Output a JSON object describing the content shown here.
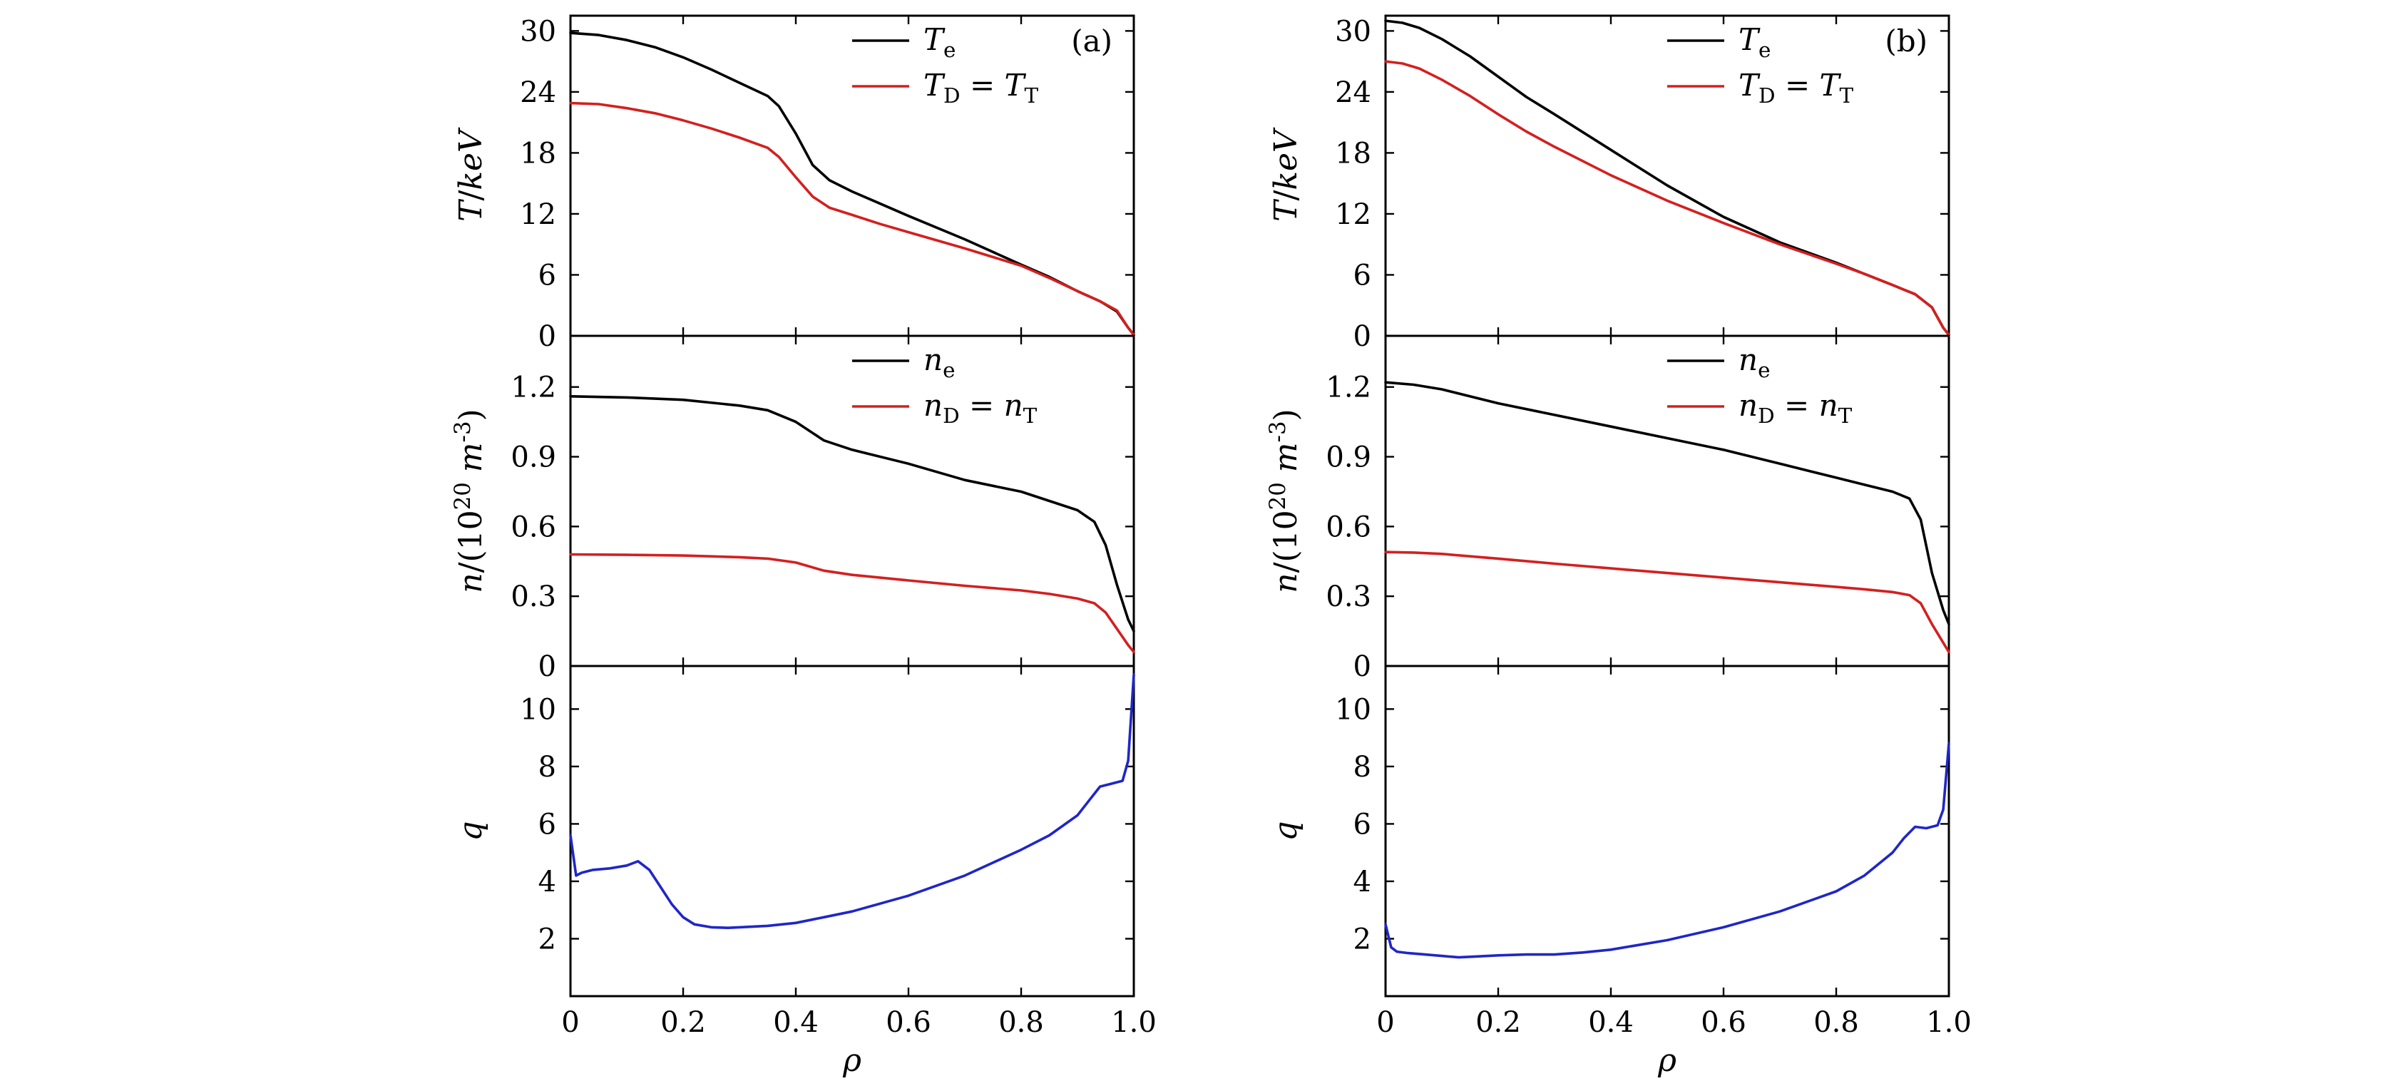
{
  "chart_data": [
    {
      "type": "line",
      "panel": "(a)",
      "subplots": [
        {
          "key": "T",
          "ylabel": "T/keV",
          "ylim": [
            0,
            31.5
          ],
          "yticks": [
            "0",
            "6",
            "12",
            "18",
            "24",
            "30"
          ],
          "yticks_values": [
            0,
            6,
            12,
            18,
            24,
            30
          ],
          "panel_tag": "(a)",
          "legend": [
            "T_e",
            "T_D = T_T"
          ],
          "series": [
            {
              "name": "T_e",
              "color": "#000000",
              "x": [
                0,
                0.05,
                0.1,
                0.15,
                0.2,
                0.25,
                0.3,
                0.35,
                0.37,
                0.4,
                0.43,
                0.46,
                0.5,
                0.55,
                0.6,
                0.7,
                0.8,
                0.85,
                0.9,
                0.94,
                0.97,
                0.99,
                1.0
              ],
              "y": [
                29.8,
                29.6,
                29.1,
                28.4,
                27.4,
                26.2,
                24.9,
                23.6,
                22.6,
                19.9,
                16.8,
                15.3,
                14.2,
                13.0,
                11.8,
                9.5,
                7.0,
                5.8,
                4.4,
                3.4,
                2.4,
                0.8,
                0.1
              ]
            },
            {
              "name": "T_D = T_T",
              "color": "#d41f1f",
              "x": [
                0,
                0.05,
                0.1,
                0.15,
                0.2,
                0.25,
                0.3,
                0.35,
                0.37,
                0.4,
                0.43,
                0.46,
                0.5,
                0.55,
                0.6,
                0.7,
                0.8,
                0.85,
                0.9,
                0.94,
                0.97,
                0.99,
                1.0
              ],
              "y": [
                22.9,
                22.8,
                22.4,
                21.9,
                21.2,
                20.4,
                19.5,
                18.5,
                17.6,
                15.6,
                13.7,
                12.6,
                11.9,
                11.0,
                10.2,
                8.6,
                6.9,
                5.7,
                4.4,
                3.4,
                2.5,
                0.8,
                0.1
              ]
            }
          ]
        },
        {
          "key": "n",
          "ylabel": "n/(10^20 m^-3)",
          "ylim": [
            0,
            1.42
          ],
          "yticks": [
            "0",
            "0.3",
            "0.6",
            "0.9",
            "1.2"
          ],
          "yticks_values": [
            0,
            0.3,
            0.6,
            0.9,
            1.2
          ],
          "legend": [
            "n_e",
            "n_D = n_T"
          ],
          "series": [
            {
              "name": "n_e",
              "color": "#000000",
              "x": [
                0,
                0.1,
                0.2,
                0.3,
                0.35,
                0.4,
                0.45,
                0.5,
                0.6,
                0.7,
                0.8,
                0.85,
                0.9,
                0.93,
                0.95,
                0.97,
                0.99,
                1.0
              ],
              "y": [
                1.16,
                1.155,
                1.145,
                1.12,
                1.1,
                1.05,
                0.97,
                0.93,
                0.87,
                0.8,
                0.75,
                0.71,
                0.67,
                0.62,
                0.52,
                0.35,
                0.2,
                0.15
              ]
            },
            {
              "name": "n_D = n_T",
              "color": "#d41f1f",
              "x": [
                0,
                0.1,
                0.2,
                0.3,
                0.35,
                0.4,
                0.45,
                0.5,
                0.6,
                0.7,
                0.8,
                0.85,
                0.9,
                0.93,
                0.95,
                0.97,
                0.99,
                1.0
              ],
              "y": [
                0.48,
                0.478,
                0.475,
                0.468,
                0.462,
                0.445,
                0.41,
                0.392,
                0.368,
                0.345,
                0.325,
                0.31,
                0.29,
                0.27,
                0.23,
                0.16,
                0.09,
                0.06
              ]
            }
          ]
        },
        {
          "key": "q",
          "ylabel": "q",
          "ylim": [
            0,
            11.5
          ],
          "yticks": [
            "2",
            "4",
            "6",
            "8",
            "10"
          ],
          "yticks_values": [
            2,
            4,
            6,
            8,
            10
          ],
          "xlabel": "ρ",
          "xlim": [
            0,
            1.0
          ],
          "xticks": [
            "0",
            "0.2",
            "0.4",
            "0.6",
            "0.8",
            "1.0"
          ],
          "xticks_values": [
            0,
            0.2,
            0.4,
            0.6,
            0.8,
            1.0
          ],
          "series": [
            {
              "name": "",
              "color": "#1f26c8",
              "x": [
                0,
                0.01,
                0.02,
                0.04,
                0.07,
                0.1,
                0.12,
                0.14,
                0.16,
                0.18,
                0.2,
                0.22,
                0.25,
                0.28,
                0.3,
                0.35,
                0.4,
                0.45,
                0.5,
                0.6,
                0.7,
                0.8,
                0.85,
                0.9,
                0.92,
                0.94,
                0.96,
                0.98,
                0.99,
                1.0
              ],
              "y": [
                5.6,
                4.2,
                4.3,
                4.4,
                4.45,
                4.55,
                4.7,
                4.4,
                3.8,
                3.2,
                2.75,
                2.5,
                2.4,
                2.38,
                2.4,
                2.45,
                2.55,
                2.75,
                2.95,
                3.5,
                4.2,
                5.1,
                5.6,
                6.3,
                6.8,
                7.3,
                7.4,
                7.5,
                8.2,
                11.2
              ]
            }
          ]
        }
      ]
    },
    {
      "type": "line",
      "panel": "(b)",
      "subplots": [
        {
          "key": "T",
          "ylabel": "T/keV",
          "ylim": [
            0,
            31.5
          ],
          "yticks": [
            "0",
            "6",
            "12",
            "18",
            "24",
            "30"
          ],
          "yticks_values": [
            0,
            6,
            12,
            18,
            24,
            30
          ],
          "panel_tag": "(b)",
          "legend": [
            "T_e",
            "T_D = T_T"
          ],
          "series": [
            {
              "name": "T_e",
              "color": "#000000",
              "x": [
                0,
                0.03,
                0.06,
                0.1,
                0.15,
                0.2,
                0.25,
                0.3,
                0.4,
                0.5,
                0.6,
                0.7,
                0.8,
                0.85,
                0.9,
                0.94,
                0.97,
                0.99,
                1.0
              ],
              "y": [
                31.0,
                30.8,
                30.3,
                29.2,
                27.5,
                25.5,
                23.5,
                21.8,
                18.3,
                14.8,
                11.7,
                9.2,
                7.2,
                6.1,
                5.0,
                4.1,
                2.8,
                0.8,
                0.1
              ]
            },
            {
              "name": "T_D = T_T",
              "color": "#d41f1f",
              "x": [
                0,
                0.03,
                0.06,
                0.1,
                0.15,
                0.2,
                0.25,
                0.3,
                0.4,
                0.5,
                0.6,
                0.7,
                0.8,
                0.85,
                0.9,
                0.94,
                0.97,
                0.99,
                1.0
              ],
              "y": [
                27.0,
                26.8,
                26.3,
                25.2,
                23.6,
                21.8,
                20.1,
                18.6,
                15.8,
                13.3,
                11.1,
                9.0,
                7.1,
                6.1,
                5.0,
                4.1,
                2.8,
                0.8,
                0.1
              ]
            }
          ]
        },
        {
          "key": "n",
          "ylabel": "n/(10^20 m^-3)",
          "ylim": [
            0,
            1.42
          ],
          "yticks": [
            "0",
            "0.3",
            "0.6",
            "0.9",
            "1.2"
          ],
          "yticks_values": [
            0,
            0.3,
            0.6,
            0.9,
            1.2
          ],
          "legend": [
            "n_e",
            "n_D = n_T"
          ],
          "series": [
            {
              "name": "n_e",
              "color": "#000000",
              "x": [
                0,
                0.05,
                0.1,
                0.2,
                0.3,
                0.4,
                0.5,
                0.6,
                0.7,
                0.8,
                0.85,
                0.9,
                0.93,
                0.95,
                0.97,
                0.99,
                1.0
              ],
              "y": [
                1.22,
                1.21,
                1.19,
                1.13,
                1.08,
                1.03,
                0.98,
                0.93,
                0.87,
                0.81,
                0.78,
                0.75,
                0.72,
                0.63,
                0.4,
                0.24,
                0.18
              ]
            },
            {
              "name": "n_D = n_T",
              "color": "#d41f1f",
              "x": [
                0,
                0.05,
                0.1,
                0.2,
                0.3,
                0.4,
                0.5,
                0.6,
                0.7,
                0.8,
                0.85,
                0.9,
                0.93,
                0.95,
                0.97,
                0.99,
                1.0
              ],
              "y": [
                0.49,
                0.488,
                0.482,
                0.462,
                0.44,
                0.42,
                0.4,
                0.38,
                0.36,
                0.34,
                0.33,
                0.318,
                0.305,
                0.27,
                0.18,
                0.1,
                0.06
              ]
            }
          ]
        },
        {
          "key": "q",
          "ylabel": "q",
          "ylim": [
            0,
            11.5
          ],
          "yticks": [
            "2",
            "4",
            "6",
            "8",
            "10"
          ],
          "yticks_values": [
            2,
            4,
            6,
            8,
            10
          ],
          "xlabel": "ρ",
          "xlim": [
            0,
            1.0
          ],
          "xticks": [
            "0",
            "0.2",
            "0.4",
            "0.6",
            "0.8",
            "1.0"
          ],
          "xticks_values": [
            0,
            0.2,
            0.4,
            0.6,
            0.8,
            1.0
          ],
          "series": [
            {
              "name": "",
              "color": "#1f26c8",
              "x": [
                0,
                0.01,
                0.02,
                0.04,
                0.07,
                0.1,
                0.13,
                0.16,
                0.2,
                0.25,
                0.3,
                0.35,
                0.4,
                0.5,
                0.6,
                0.7,
                0.8,
                0.85,
                0.9,
                0.92,
                0.94,
                0.96,
                0.98,
                0.99,
                1.0
              ],
              "y": [
                2.5,
                1.7,
                1.55,
                1.5,
                1.45,
                1.4,
                1.35,
                1.38,
                1.42,
                1.45,
                1.45,
                1.52,
                1.62,
                1.95,
                2.4,
                2.95,
                3.65,
                4.2,
                5.0,
                5.5,
                5.9,
                5.85,
                5.95,
                6.5,
                8.8
              ]
            }
          ]
        }
      ]
    }
  ]
}
